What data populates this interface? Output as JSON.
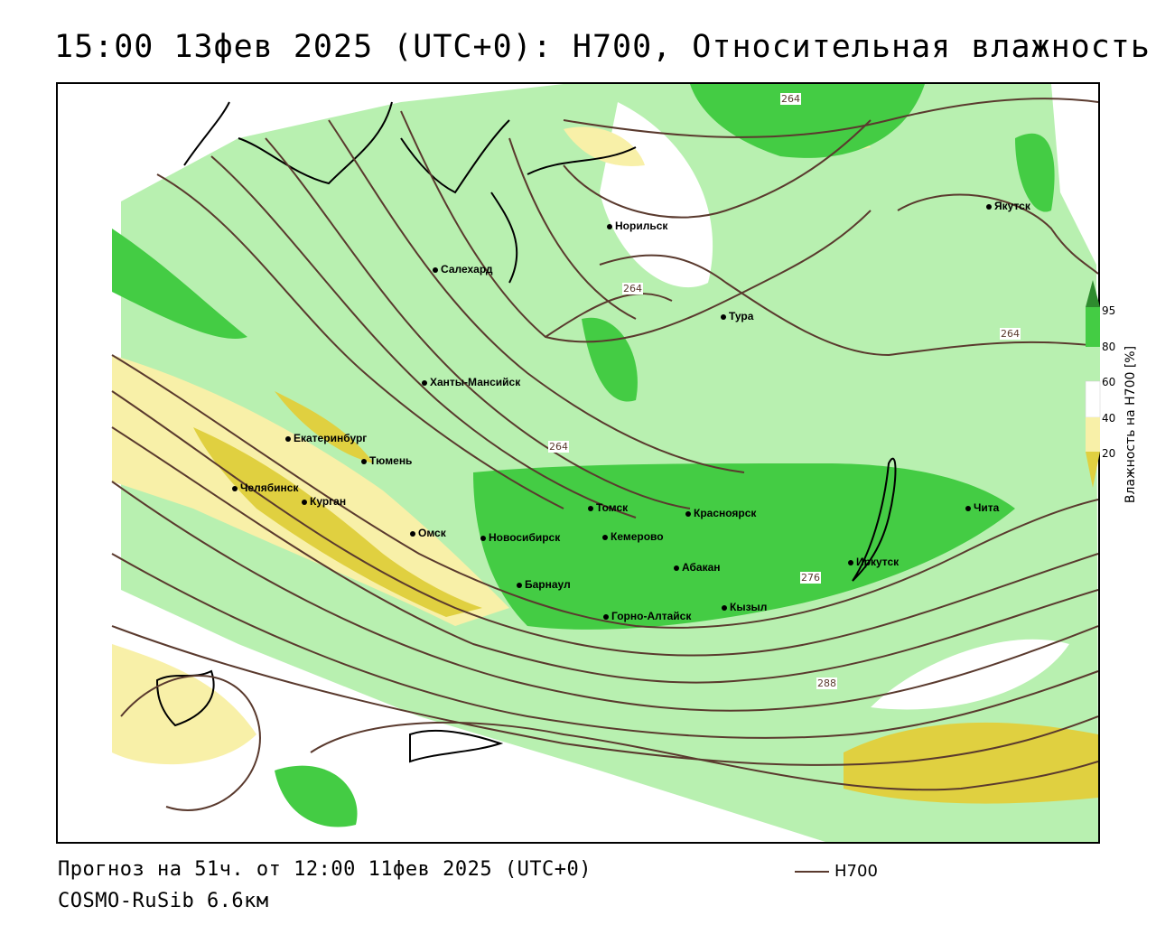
{
  "header": {
    "title": "15:00 13фев 2025 (UTC+0): H700, Относительная влажность"
  },
  "footer": {
    "forecast": "Прогноз на 51ч. от 12:00 11фев 2025 (UTC+0)",
    "model": "COSMO-RuSib 6.6км",
    "line_legend": "H700"
  },
  "colorbar": {
    "title": "Влажность на H700 [%]",
    "ticks": [
      "95",
      "80",
      "60",
      "40",
      "20"
    ],
    "colors": {
      "95": "#2e8b2e",
      "80": "#44cc44",
      "60": "#b8f0b0",
      "50": "#ffffff",
      "40": "#f8f0a8",
      "20": "#e0d040"
    }
  },
  "contour_labels": [
    "264",
    "264",
    "264",
    "264",
    "276",
    "288"
  ],
  "cities": [
    {
      "name": "Якутск"
    },
    {
      "name": "Норильск"
    },
    {
      "name": "Салехард"
    },
    {
      "name": "Тура"
    },
    {
      "name": "Ханты-Мансийск"
    },
    {
      "name": "Екатеринбург"
    },
    {
      "name": "Тюмень"
    },
    {
      "name": "Челябинск"
    },
    {
      "name": "Курган"
    },
    {
      "name": "Омск"
    },
    {
      "name": "Новосибирск"
    },
    {
      "name": "Томск"
    },
    {
      "name": "Кемерово"
    },
    {
      "name": "Красноярск"
    },
    {
      "name": "Барнаул"
    },
    {
      "name": "Абакан"
    },
    {
      "name": "Горно-Алтайск"
    },
    {
      "name": "Кызыл"
    },
    {
      "name": "Иркутск"
    },
    {
      "name": "Чита"
    }
  ]
}
